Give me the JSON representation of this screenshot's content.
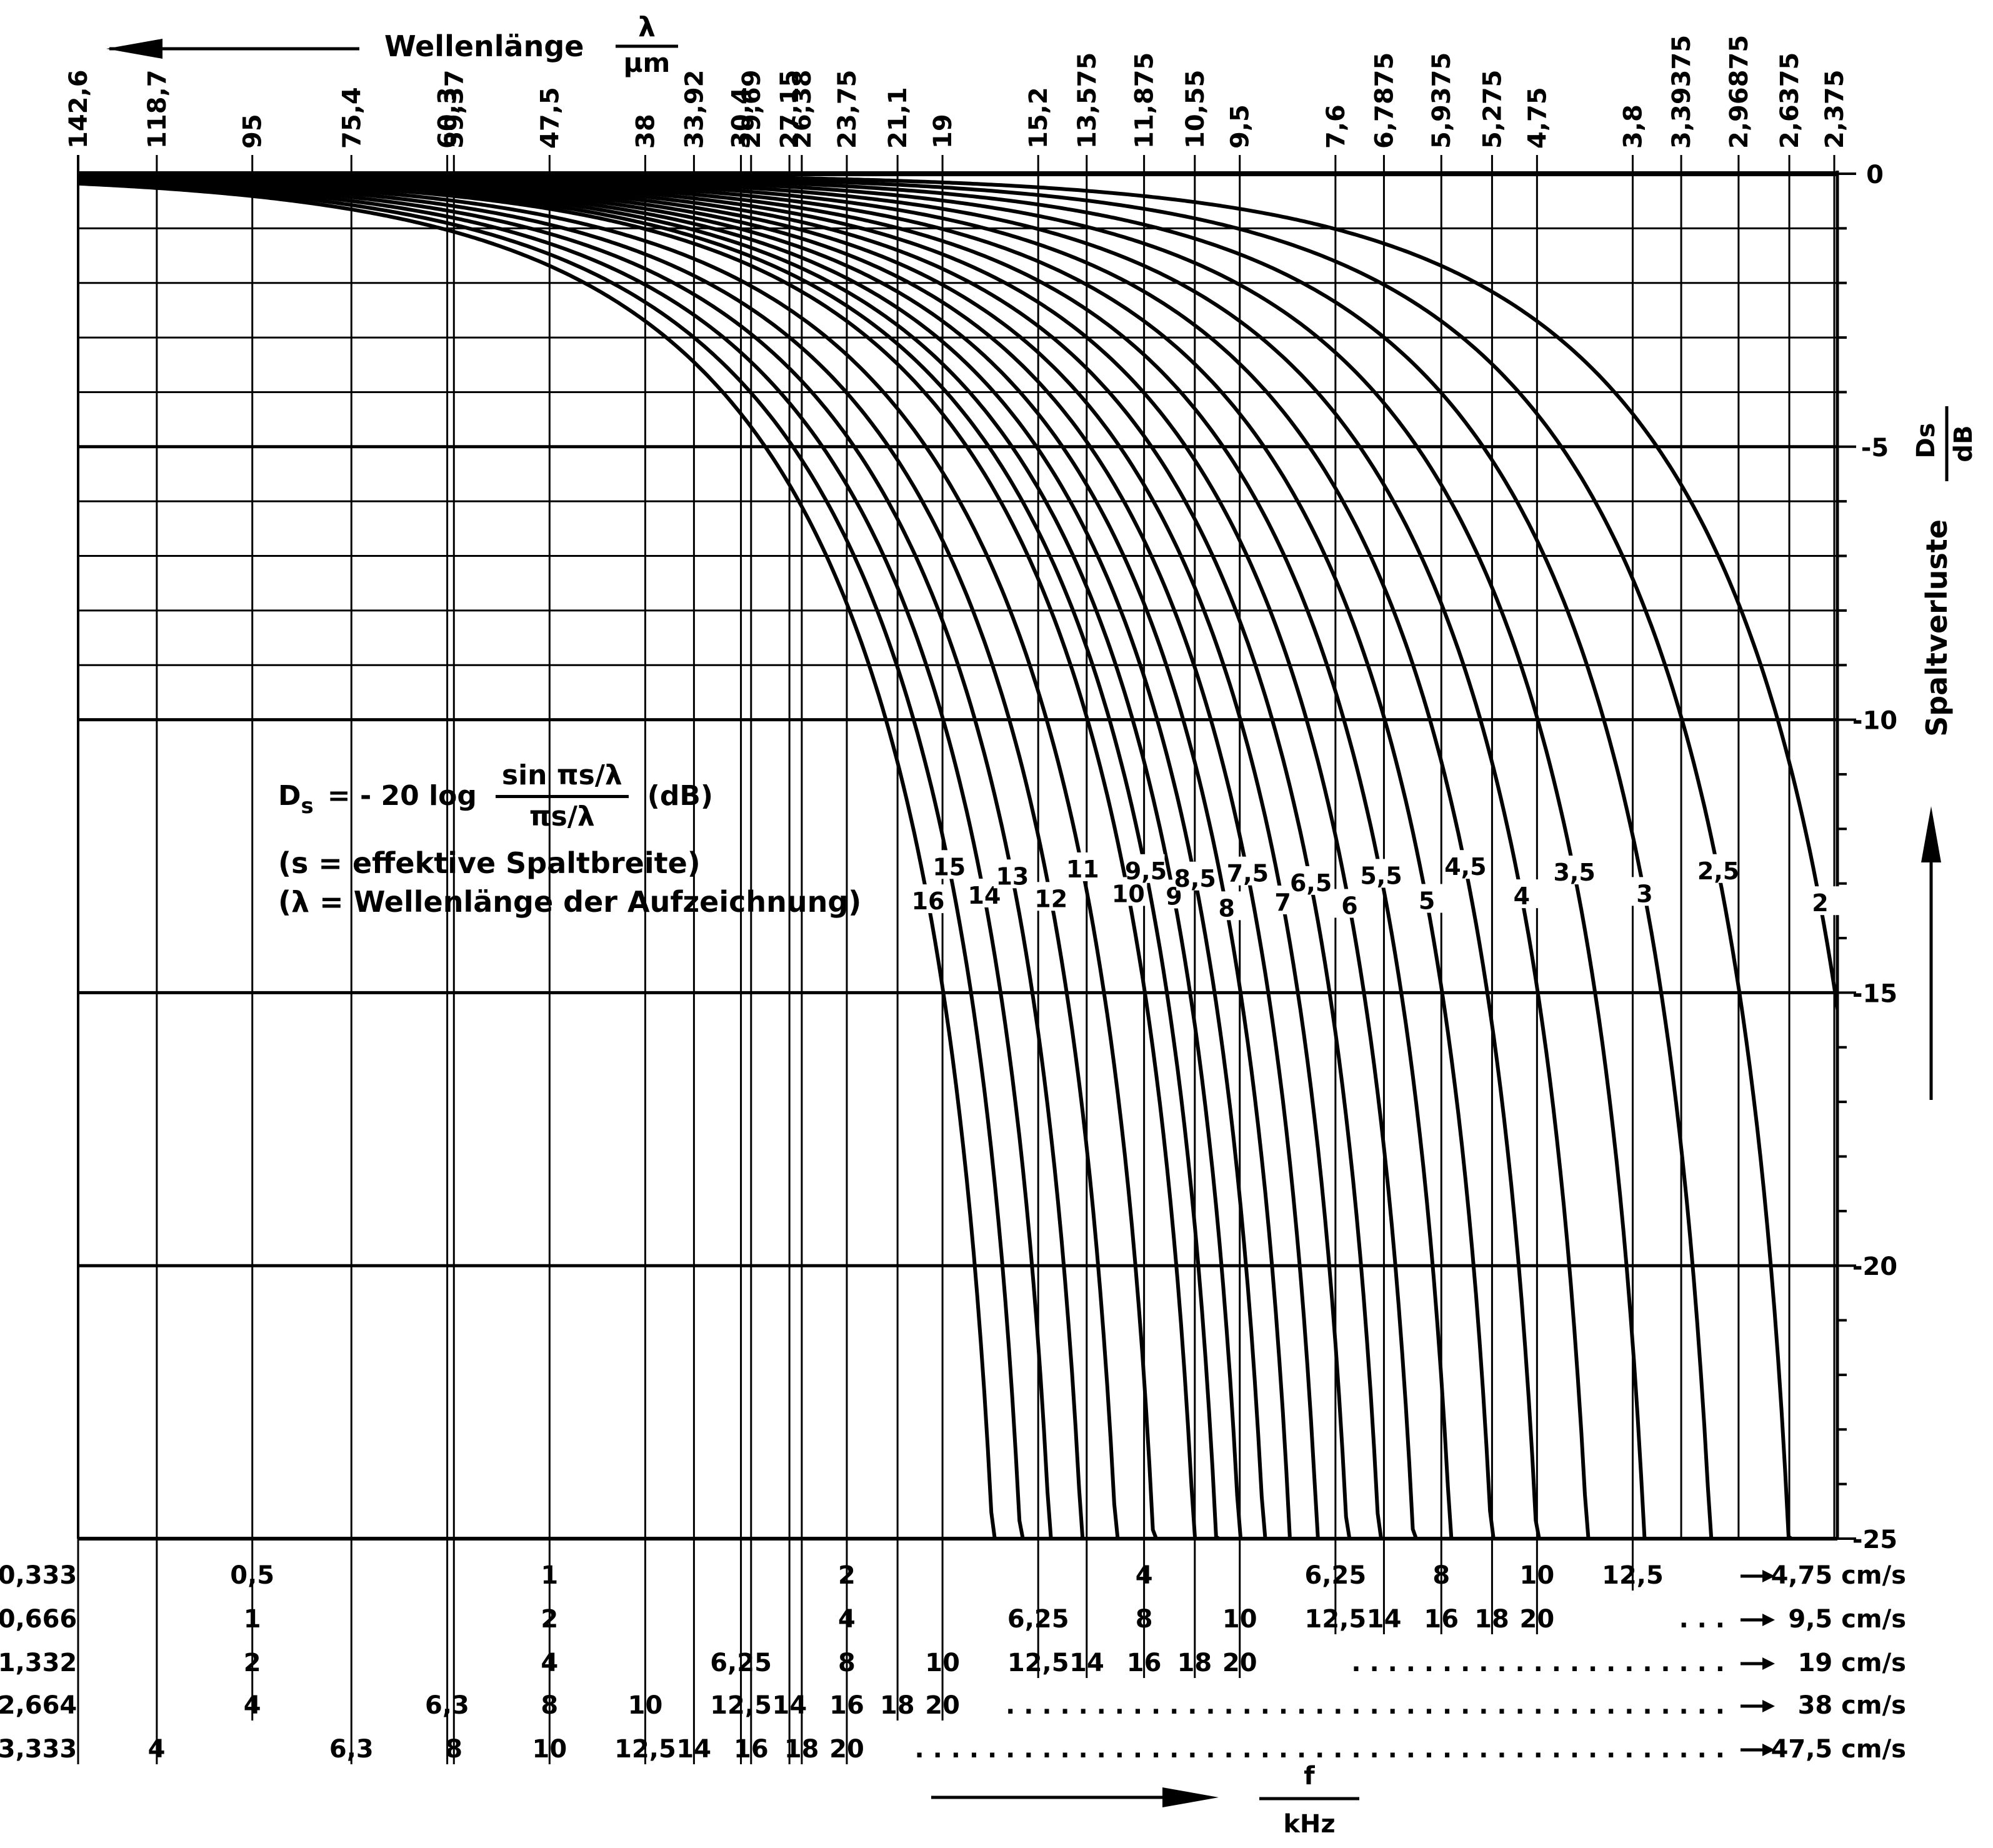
{
  "chart_data": {
    "type": "line",
    "title": "Spaltverluste",
    "top_axis": {
      "label_text": "Wellenlänge",
      "label_num": "λ",
      "label_den": "µm",
      "ticks": [
        "142,6",
        "118,7",
        "95",
        "75,4",
        "60,3",
        "59,37",
        "47,5",
        "38",
        "33,92",
        "30,4",
        "29,69",
        "27,15",
        "26,38",
        "23,75",
        "21,1",
        "19",
        "15,2",
        "13,575",
        "11,875",
        "10,55",
        "9,5",
        "7,6",
        "6,7875",
        "5,9375",
        "5,275",
        "4,75",
        "3,8",
        "3,39375",
        "2,96875",
        "2,6375",
        "2,375"
      ],
      "values_um": [
        142.6,
        118.7,
        95,
        75.4,
        60.3,
        59.37,
        47.5,
        38,
        33.92,
        30.4,
        29.69,
        27.15,
        26.38,
        23.75,
        21.1,
        19,
        15.2,
        13.575,
        11.875,
        10.55,
        9.5,
        7.6,
        6.7875,
        5.9375,
        5.275,
        4.75,
        3.8,
        3.39375,
        2.96875,
        2.6375,
        2.375
      ]
    },
    "y_axis": {
      "label_text": "Spaltverluste",
      "label_num": "Ds",
      "label_den": "dB",
      "ticks": [
        "0",
        "-5",
        "-10",
        "-15",
        "-20",
        "-25"
      ],
      "ylim": [
        -25,
        0
      ],
      "minor_step": 1
    },
    "x_axis": {
      "label_num": "f",
      "label_den": "kHz"
    },
    "bottom_rows": [
      {
        "speed": "4,75 cm/s",
        "start": "0,333",
        "labels": [
          [
            "0,5",
            0.5
          ],
          [
            "1",
            1
          ],
          [
            "2",
            2
          ],
          [
            "4",
            4
          ],
          [
            "6,25",
            6.25
          ],
          [
            "8",
            8
          ],
          [
            "10",
            10
          ],
          [
            "12,5",
            12.5
          ]
        ],
        "dots": "",
        "fmax_khz": 2
      },
      {
        "speed": "9,5 cm/s",
        "start": "0,666",
        "labels": [
          [
            "1",
            1
          ],
          [
            "2",
            2
          ],
          [
            "4",
            4
          ],
          [
            "6,25",
            6.25
          ],
          [
            "8",
            8
          ],
          [
            "10",
            10
          ],
          [
            "12,5",
            12.5
          ],
          [
            "14",
            14
          ],
          [
            "16",
            16
          ],
          [
            "18",
            18
          ],
          [
            "20",
            20
          ]
        ],
        "dots": ".   .   .",
        "fmax_khz": 4
      },
      {
        "speed": "19 cm/s",
        "start": "1,332",
        "labels": [
          [
            "2",
            2
          ],
          [
            "4",
            4
          ],
          [
            "6,25",
            6.25
          ],
          [
            "8",
            8
          ],
          [
            "10",
            10
          ],
          [
            "12,5",
            12.5
          ],
          [
            "14",
            14
          ],
          [
            "16",
            16
          ],
          [
            "18",
            18
          ],
          [
            "20",
            20
          ]
        ],
        "dots": ". . . . . . . . . . . . . . . . . . . . .",
        "fmax_khz": 8
      },
      {
        "speed": "38 cm/s",
        "start": "2,664",
        "labels": [
          [
            "4",
            4
          ],
          [
            "6,3",
            6.3
          ],
          [
            "8",
            8
          ],
          [
            "10",
            10
          ],
          [
            "12,5",
            12.5
          ],
          [
            "14",
            14
          ],
          [
            "16",
            16
          ],
          [
            "18",
            18
          ],
          [
            "20",
            20
          ]
        ],
        "dots": ". . . . . . . . . . . . . . . . . . . . . . . . . . . . . . . . . . . . . . . .",
        "fmax_khz": 16
      },
      {
        "speed": "47,5 cm/s",
        "start": "3,333",
        "labels": [
          [
            "4",
            4
          ],
          [
            "6,3",
            6.3
          ],
          [
            "8",
            8
          ],
          [
            "10",
            10
          ],
          [
            "12,5",
            12.5
          ],
          [
            "14",
            14
          ],
          [
            "16",
            16
          ],
          [
            "18",
            18
          ],
          [
            "20",
            20
          ]
        ],
        "dots": ". . . . . . . . . . . . . . . . . . . . . . . . . . . . . . . . . . . . . . . . . . . . .",
        "fmax_khz": 20
      }
    ],
    "series_gap_um": [
      "16",
      "15",
      "14",
      "13",
      "12",
      "11",
      "10",
      "9,5",
      "9",
      "8,5",
      "8",
      "7,5",
      "7",
      "6,5",
      "6",
      "5,5",
      "5",
      "4,5",
      "4",
      "3,5",
      "3",
      "2,5",
      "2"
    ],
    "series_gap_values": [
      16,
      15,
      14,
      13,
      12,
      11,
      10,
      9.5,
      9,
      8.5,
      8,
      7.5,
      7,
      6.5,
      6,
      5.5,
      5,
      4.5,
      4,
      3.5,
      3,
      2.5,
      2
    ]
  },
  "formula": {
    "lhs": "D",
    "lhs_sub": "s",
    "eq": "= - 20 log",
    "numerator": "sin πs/λ",
    "denominator": "πs/λ",
    "unit": "(dB)",
    "note1": "(s = effektive Spaltbreite)",
    "note2": "(λ = Wellenlänge der Aufzeichnung)"
  }
}
